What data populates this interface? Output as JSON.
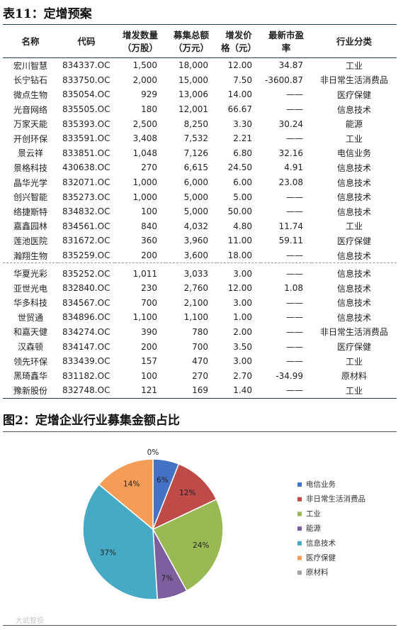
{
  "table_title": "表11：定增预案",
  "table": {
    "headers": [
      {
        "line1": "名称",
        "line2": ""
      },
      {
        "line1": "代码",
        "line2": ""
      },
      {
        "line1": "增发数量",
        "line2": "（万股）"
      },
      {
        "line1": "募集总额",
        "line2": "（万元）"
      },
      {
        "line1": "增发价",
        "line2": "格（元）"
      },
      {
        "line1": "最新市盈",
        "line2": "率"
      },
      {
        "line1": "行业分类",
        "line2": ""
      }
    ],
    "rows_a": [
      [
        "宏川智慧",
        "834337.OC",
        "1,500",
        "18,000",
        "12.00",
        "34.87",
        "工业"
      ],
      [
        "长宁钻石",
        "833750.OC",
        "2,000",
        "15,000",
        "7.50",
        "-3600.87",
        "非日常生活消费品"
      ],
      [
        "微点生物",
        "835054.OC",
        "929",
        "13,006",
        "14.00",
        "——",
        "医疗保健"
      ],
      [
        "光音网络",
        "835505.OC",
        "180",
        "12,001",
        "66.67",
        "——",
        "信息技术"
      ],
      [
        "万家天能",
        "835393.OC",
        "2,500",
        "8,250",
        "3.30",
        "30.24",
        "能源"
      ],
      [
        "开创环保",
        "833591.OC",
        "3,408",
        "7,532",
        "2.21",
        "——",
        "工业"
      ],
      [
        "景云祥",
        "833851.OC",
        "1,048",
        "7,126",
        "6.80",
        "32.16",
        "电信业务"
      ],
      [
        "景格科技",
        "430638.OC",
        "270",
        "6,615",
        "24.50",
        "4.91",
        "信息技术"
      ],
      [
        "晶华光学",
        "832071.OC",
        "1,000",
        "6,000",
        "6.00",
        "23.08",
        "信息技术"
      ],
      [
        "创兴智能",
        "835273.OC",
        "1,000",
        "5,000",
        "5.00",
        "——",
        "信息技术"
      ],
      [
        "络捷斯特",
        "834832.OC",
        "100",
        "5,000",
        "50.00",
        "——",
        "信息技术"
      ],
      [
        "嘉鑫园林",
        "834561.OC",
        "840",
        "4,032",
        "4.80",
        "11.74",
        "工业"
      ],
      [
        "莲池医院",
        "831672.OC",
        "360",
        "3,960",
        "11.00",
        "59.11",
        "医疗保健"
      ],
      [
        "瀚翔生物",
        "835259.OC",
        "200",
        "3,600",
        "18.00",
        "——",
        "信息技术"
      ]
    ],
    "rows_b": [
      [
        "华夏光彩",
        "835252.OC",
        "1,011",
        "3,033",
        "3.00",
        "——",
        "信息技术"
      ],
      [
        "亚世光电",
        "832840.OC",
        "230",
        "2,760",
        "12.00",
        "1.08",
        "信息技术"
      ],
      [
        "华多科技",
        "834567.OC",
        "700",
        "2,100",
        "3.00",
        "——",
        "信息技术"
      ],
      [
        "世贸通",
        "834896.OC",
        "1,100",
        "1,100",
        "1.00",
        "——",
        "信息技术"
      ],
      [
        "和嘉天健",
        "834274.OC",
        "390",
        "780",
        "2.00",
        "——",
        "非日常生活消费品"
      ],
      [
        "汉森顿",
        "834147.OC",
        "200",
        "700",
        "3.50",
        "——",
        "医疗保健"
      ],
      [
        "领先环保",
        "833439.OC",
        "157",
        "470",
        "3.00",
        "——",
        "工业"
      ],
      [
        "黑琦鑫华",
        "831182.OC",
        "100",
        "270",
        "2.70",
        "-34.99",
        "原材料"
      ],
      [
        "豫新股份",
        "832748.OC",
        "121",
        "169",
        "1.40",
        "——",
        "工业"
      ]
    ]
  },
  "chart_title": "图2：定增企业行业募集金额占比",
  "watermark": "大武智投",
  "chart_data": {
    "type": "pie",
    "title": "",
    "start_angle_deg": 0,
    "direction": "clockwise",
    "labels": [
      "电信业务",
      "非日常生活消费品",
      "工业",
      "能源",
      "信息技术",
      "医疗保健",
      "原材料"
    ],
    "values": [
      6,
      12,
      24,
      7,
      37,
      14,
      0
    ],
    "data_labels": [
      "6%",
      "12%",
      "24%",
      "7%",
      "37%",
      "14%",
      "0%"
    ],
    "colors": [
      "#4472c4",
      "#be4b48",
      "#98b954",
      "#7d5fa0",
      "#46aac5",
      "#f59d56",
      "#a5a5a5"
    ],
    "legend_position": "right"
  }
}
